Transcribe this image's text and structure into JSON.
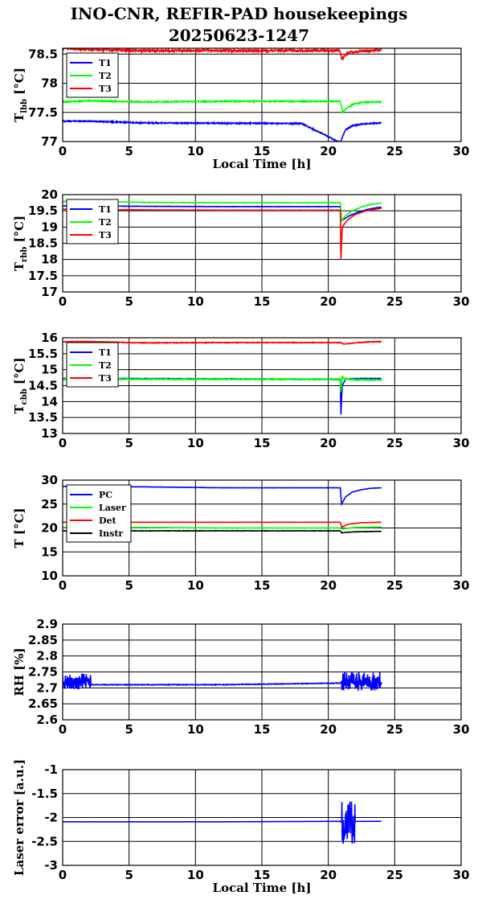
{
  "title": {
    "line1": "INO-CNR, REFIR-PAD housekeepings",
    "line2": "20250623-1247"
  },
  "chart_data": [
    {
      "type": "line",
      "ylabel": "T_lbb [°C]",
      "xlabel": "Local Time [h]",
      "xlim": [
        0,
        30
      ],
      "ylim": [
        77,
        78.6
      ],
      "yticks": [
        77,
        77.5,
        78,
        78.5
      ],
      "ytick_labels": [
        "77",
        "77.5",
        "78",
        "78.5"
      ],
      "xticks": [
        0,
        5,
        10,
        15,
        20,
        25,
        30
      ],
      "xtick_labels": [
        "0",
        "5",
        "10",
        "15",
        "20",
        "25",
        "30"
      ],
      "grid": true,
      "legend_position": "top-left",
      "series": [
        {
          "name": "T1",
          "color": "#0000ff",
          "x": [
            0,
            2,
            6,
            18,
            20.9,
            21.1,
            21.3,
            21.8,
            22.5,
            23.2,
            24
          ],
          "y": [
            77.35,
            77.35,
            77.32,
            77.31,
            76.98,
            77.1,
            77.2,
            77.27,
            77.3,
            77.31,
            77.32
          ],
          "noise": 0.02
        },
        {
          "name": "T2",
          "color": "#00ff00",
          "x": [
            0,
            2,
            6,
            12,
            20.9,
            21.1,
            21.4,
            21.9,
            22.5,
            23.2,
            24
          ],
          "y": [
            77.68,
            77.7,
            77.68,
            77.69,
            77.69,
            77.5,
            77.58,
            77.64,
            77.67,
            77.68,
            77.68
          ],
          "noise": 0.02
        },
        {
          "name": "T3",
          "color": "#ff0000",
          "x": [
            0,
            2,
            6,
            12,
            20.9,
            21.0,
            21.5,
            22.5,
            24
          ],
          "y": [
            78.6,
            78.58,
            78.56,
            78.56,
            78.56,
            78.4,
            78.53,
            78.55,
            78.57
          ],
          "noise": 0.04
        }
      ]
    },
    {
      "type": "line",
      "ylabel": "T_rbb [°C]",
      "xlabel": "",
      "xlim": [
        0,
        30
      ],
      "ylim": [
        17,
        20
      ],
      "yticks": [
        17,
        17.5,
        18,
        18.5,
        19,
        19.5,
        20
      ],
      "ytick_labels": [
        "17",
        "17.5",
        "18",
        "18.5",
        "19",
        "19.5",
        "20"
      ],
      "xticks": [
        0,
        5,
        10,
        15,
        20,
        25,
        30
      ],
      "xtick_labels": [
        "0",
        "5",
        "10",
        "15",
        "20",
        "25",
        "30"
      ],
      "grid": true,
      "legend_position": "top-left",
      "series": [
        {
          "name": "T1",
          "color": "#0000ff",
          "x": [
            0,
            6,
            12,
            20.9,
            21.0,
            21.2,
            21.6,
            22.2,
            23,
            24
          ],
          "y": [
            19.65,
            19.64,
            19.63,
            19.63,
            19.2,
            19.25,
            19.35,
            19.45,
            19.55,
            19.62
          ],
          "noise": 0.01
        },
        {
          "name": "T2",
          "color": "#00ff00",
          "x": [
            0,
            1,
            2,
            6,
            12,
            20.9,
            21.0,
            21.3,
            21.8,
            22.5,
            23.2,
            24
          ],
          "y": [
            19.78,
            19.85,
            19.8,
            19.76,
            19.75,
            19.75,
            19.2,
            19.35,
            19.5,
            19.62,
            19.7,
            19.74
          ],
          "noise": 0.01
        },
        {
          "name": "T3",
          "color": "#ff0000",
          "x": [
            0,
            6,
            12,
            20.9,
            20.95,
            21.05,
            21.4,
            22,
            22.8,
            24
          ],
          "y": [
            19.55,
            19.53,
            19.52,
            19.52,
            18.0,
            19.0,
            19.2,
            19.38,
            19.5,
            19.58
          ],
          "noise": 0.01
        }
      ]
    },
    {
      "type": "line",
      "ylabel": "T_cbb [°C]",
      "xlabel": "",
      "xlim": [
        0,
        30
      ],
      "ylim": [
        13,
        16
      ],
      "yticks": [
        13,
        13.5,
        14,
        14.5,
        15,
        15.5,
        16
      ],
      "ytick_labels": [
        "13",
        "13.5",
        "14",
        "14.5",
        "15",
        "15.5",
        "16"
      ],
      "xticks": [
        0,
        5,
        10,
        15,
        20,
        25,
        30
      ],
      "xtick_labels": [
        "0",
        "5",
        "10",
        "15",
        "20",
        "25",
        "30"
      ],
      "grid": true,
      "legend_position": "top-left",
      "series": [
        {
          "name": "T1",
          "color": "#0000ff",
          "x": [
            0,
            6,
            18,
            20.9,
            20.95,
            21.05,
            21.3,
            22,
            24
          ],
          "y": [
            14.72,
            14.72,
            14.7,
            14.7,
            13.6,
            14.5,
            14.7,
            14.72,
            14.72
          ],
          "noise": 0.02
        },
        {
          "name": "T2",
          "color": "#00ff00",
          "x": [
            0,
            6,
            12,
            20.9,
            20.95,
            21.05,
            21.2,
            22,
            24
          ],
          "y": [
            14.7,
            14.7,
            14.7,
            14.7,
            14.3,
            14.8,
            14.72,
            14.68,
            14.68
          ],
          "noise": 0.03
        },
        {
          "name": "T3",
          "color": "#ff0000",
          "x": [
            0,
            2,
            6,
            12,
            20.9,
            21.2,
            22,
            23,
            24
          ],
          "y": [
            15.88,
            15.88,
            15.84,
            15.85,
            15.85,
            15.8,
            15.84,
            15.87,
            15.88
          ],
          "noise": 0.02
        }
      ]
    },
    {
      "type": "line",
      "ylabel": "T [°C]",
      "xlabel": "",
      "xlim": [
        0,
        30
      ],
      "ylim": [
        10,
        30
      ],
      "yticks": [
        10,
        15,
        20,
        25,
        30
      ],
      "ytick_labels": [
        "10",
        "15",
        "20",
        "25",
        "30"
      ],
      "xticks": [
        0,
        5,
        10,
        15,
        20,
        25,
        30
      ],
      "xtick_labels": [
        "0",
        "5",
        "10",
        "15",
        "20",
        "25",
        "30"
      ],
      "grid": true,
      "legend_position": "top-left",
      "series": [
        {
          "name": "PC",
          "color": "#0000ff",
          "x": [
            0,
            6,
            12,
            20.9,
            21.0,
            21.3,
            21.8,
            22.5,
            23.2,
            24
          ],
          "y": [
            28.7,
            28.6,
            28.4,
            28.4,
            25.0,
            26.5,
            27.5,
            28.0,
            28.3,
            28.4
          ],
          "noise": 0.05
        },
        {
          "name": "Laser",
          "color": "#00ff00",
          "x": [
            0,
            6,
            12,
            20.9,
            21.0,
            22,
            24
          ],
          "y": [
            20.1,
            20.1,
            20.0,
            20.0,
            19.8,
            20.1,
            20.2
          ],
          "noise": 0.05
        },
        {
          "name": "Det",
          "color": "#ff0000",
          "x": [
            0,
            6,
            12,
            20.9,
            21.0,
            21.5,
            22.5,
            24
          ],
          "y": [
            21.2,
            21.2,
            21.2,
            21.2,
            20.2,
            20.8,
            21.1,
            21.2
          ],
          "noise": 0.03
        },
        {
          "name": "Instr",
          "color": "#000000",
          "x": [
            0,
            6,
            12,
            20.9,
            21.0,
            22,
            24
          ],
          "y": [
            19.4,
            19.4,
            19.4,
            19.4,
            19.0,
            19.2,
            19.3
          ],
          "noise": 0.08
        }
      ]
    },
    {
      "type": "line",
      "ylabel": "RH [%]",
      "xlabel": "",
      "xlim": [
        0,
        30
      ],
      "ylim": [
        2.6,
        2.9
      ],
      "yticks": [
        2.6,
        2.65,
        2.7,
        2.75,
        2.8,
        2.85,
        2.9
      ],
      "ytick_labels": [
        "2.6",
        "2.65",
        "2.7",
        "2.75",
        "2.8",
        "2.85",
        "2.9"
      ],
      "xticks": [
        0,
        5,
        10,
        15,
        20,
        25,
        30
      ],
      "xtick_labels": [
        "0",
        "5",
        "10",
        "15",
        "20",
        "25",
        "30"
      ],
      "grid": true,
      "legend_position": "none",
      "series": [
        {
          "name": "",
          "color": "#0000ff",
          "x": [
            0,
            2.1,
            2.15,
            12,
            20.9,
            21.0,
            24
          ],
          "y": [
            2.72,
            2.72,
            2.71,
            2.71,
            2.715,
            2.72,
            2.72
          ],
          "noisy_ranges": [
            [
              0,
              2.1,
              0.05
            ],
            [
              21.0,
              24,
              0.06
            ]
          ]
        }
      ]
    },
    {
      "type": "line",
      "ylabel": "Laser error [a.u.]",
      "xlabel": "Local Time [h]",
      "xlim": [
        0,
        30
      ],
      "ylim": [
        -3,
        -1
      ],
      "yticks": [
        -3,
        -2.5,
        -2,
        -1.5,
        -1
      ],
      "ytick_labels": [
        "-3",
        "-2.5",
        "-2",
        "-1.5",
        "-1"
      ],
      "xticks": [
        0,
        5,
        10,
        15,
        20,
        25,
        30
      ],
      "xtick_labels": [
        "0",
        "5",
        "10",
        "15",
        "20",
        "25",
        "30"
      ],
      "grid": true,
      "legend_position": "none",
      "series": [
        {
          "name": "",
          "color": "#0000ff",
          "x": [
            0,
            12,
            20.9,
            21.0,
            22.0,
            22.1,
            24
          ],
          "y": [
            -2.09,
            -2.09,
            -2.08,
            -2.1,
            -2.1,
            -2.08,
            -2.08
          ],
          "noisy_ranges": [
            [
              21.0,
              22.0,
              0.9
            ]
          ]
        }
      ]
    }
  ]
}
